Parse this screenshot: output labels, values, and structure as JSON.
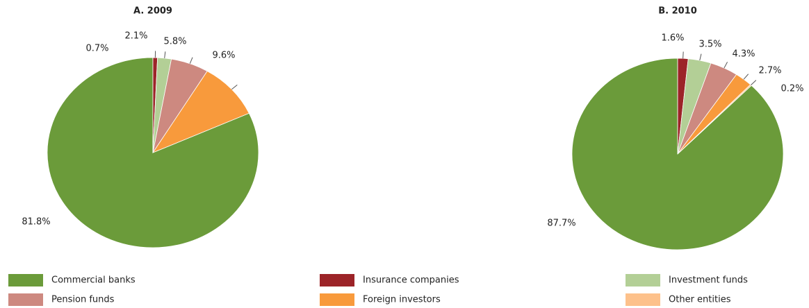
{
  "legend": [
    {
      "name": "Commercial banks",
      "color": "#6b9b3a"
    },
    {
      "name": "Insurance companies",
      "color": "#9c2428"
    },
    {
      "name": "Investment funds",
      "color": "#b3cf96"
    },
    {
      "name": "Pension funds",
      "color": "#cd8980"
    },
    {
      "name": "Foreign investors",
      "color": "#f89a3c"
    },
    {
      "name": "Other entities",
      "color": "#fdc18b"
    }
  ],
  "chart_data": [
    {
      "type": "pie",
      "title": "A. 2009",
      "values": [
        81.8,
        0.7,
        2.1,
        5.8,
        9.6,
        null
      ],
      "value_labels": [
        "81.8%",
        "0.7%",
        "2.1%",
        "5.8%",
        "9.6%",
        null
      ]
    },
    {
      "type": "pie",
      "title": "B. 2010",
      "values": [
        87.7,
        1.6,
        3.5,
        4.3,
        2.7,
        0.2
      ],
      "value_labels": [
        "87.7%",
        "1.6%",
        "3.5%",
        "4.3%",
        "2.7%",
        "0.2%"
      ]
    }
  ]
}
